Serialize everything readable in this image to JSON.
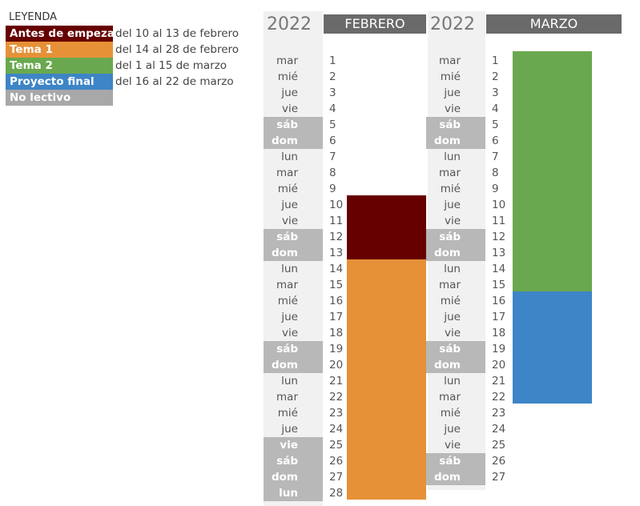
{
  "legend": {
    "title": "LEYENDA",
    "items": [
      {
        "label": "Antes de empezar",
        "range": "del 10 al 13 de febrero",
        "color": "#660000"
      },
      {
        "label": "Tema 1",
        "range": "del 14 al 28 de febrero",
        "color": "#e69138"
      },
      {
        "label": "Tema 2",
        "range": "del 1 al 15 de marzo",
        "color": "#6aa84f"
      },
      {
        "label": "Proyecto final",
        "range": "del 16 al 22 de marzo",
        "color": "#3d85c6"
      },
      {
        "label": "No lectivo",
        "range": "",
        "color": "#a8a8a8"
      }
    ]
  },
  "february": {
    "year": "2022",
    "month": "FEBRERO",
    "days": [
      {
        "name": "mar",
        "num": "1",
        "weekend": false
      },
      {
        "name": "mié",
        "num": "2",
        "weekend": false
      },
      {
        "name": "jue",
        "num": "3",
        "weekend": false
      },
      {
        "name": "vie",
        "num": "4",
        "weekend": false
      },
      {
        "name": "sáb",
        "num": "5",
        "weekend": true
      },
      {
        "name": "dom",
        "num": "6",
        "weekend": true
      },
      {
        "name": "lun",
        "num": "7",
        "weekend": false
      },
      {
        "name": "mar",
        "num": "8",
        "weekend": false
      },
      {
        "name": "mié",
        "num": "9",
        "weekend": false
      },
      {
        "name": "jue",
        "num": "10",
        "weekend": false
      },
      {
        "name": "vie",
        "num": "11",
        "weekend": false
      },
      {
        "name": "sáb",
        "num": "12",
        "weekend": true
      },
      {
        "name": "dom",
        "num": "13",
        "weekend": true
      },
      {
        "name": "lun",
        "num": "14",
        "weekend": false
      },
      {
        "name": "mar",
        "num": "15",
        "weekend": false
      },
      {
        "name": "mié",
        "num": "16",
        "weekend": false
      },
      {
        "name": "jue",
        "num": "17",
        "weekend": false
      },
      {
        "name": "vie",
        "num": "18",
        "weekend": false
      },
      {
        "name": "sáb",
        "num": "19",
        "weekend": true
      },
      {
        "name": "dom",
        "num": "20",
        "weekend": true
      },
      {
        "name": "lun",
        "num": "21",
        "weekend": false
      },
      {
        "name": "mar",
        "num": "22",
        "weekend": false
      },
      {
        "name": "mié",
        "num": "23",
        "weekend": false
      },
      {
        "name": "jue",
        "num": "24",
        "weekend": false
      },
      {
        "name": "vie",
        "num": "25",
        "weekend": true
      },
      {
        "name": "sáb",
        "num": "26",
        "weekend": true
      },
      {
        "name": "dom",
        "num": "27",
        "weekend": true
      },
      {
        "name": "lun",
        "num": "28",
        "weekend": true
      }
    ],
    "blocks": [
      {
        "from": 10,
        "to": 13,
        "color": "#660000"
      },
      {
        "from": 14,
        "to": 28,
        "color": "#e69138"
      }
    ]
  },
  "march": {
    "year": "2022",
    "month": "MARZO",
    "days": [
      {
        "name": "mar",
        "num": "1",
        "weekend": false
      },
      {
        "name": "mié",
        "num": "2",
        "weekend": false
      },
      {
        "name": "jue",
        "num": "3",
        "weekend": false
      },
      {
        "name": "vie",
        "num": "4",
        "weekend": false
      },
      {
        "name": "sáb",
        "num": "5",
        "weekend": true
      },
      {
        "name": "dom",
        "num": "6",
        "weekend": true
      },
      {
        "name": "lun",
        "num": "7",
        "weekend": false
      },
      {
        "name": "mar",
        "num": "8",
        "weekend": false
      },
      {
        "name": "mié",
        "num": "9",
        "weekend": false
      },
      {
        "name": "jue",
        "num": "10",
        "weekend": false
      },
      {
        "name": "vie",
        "num": "11",
        "weekend": false
      },
      {
        "name": "sáb",
        "num": "12",
        "weekend": true
      },
      {
        "name": "dom",
        "num": "13",
        "weekend": true
      },
      {
        "name": "lun",
        "num": "14",
        "weekend": false
      },
      {
        "name": "mar",
        "num": "15",
        "weekend": false
      },
      {
        "name": "mié",
        "num": "16",
        "weekend": false
      },
      {
        "name": "jue",
        "num": "17",
        "weekend": false
      },
      {
        "name": "vie",
        "num": "18",
        "weekend": false
      },
      {
        "name": "sáb",
        "num": "19",
        "weekend": true
      },
      {
        "name": "dom",
        "num": "20",
        "weekend": true
      },
      {
        "name": "lun",
        "num": "21",
        "weekend": false
      },
      {
        "name": "mar",
        "num": "22",
        "weekend": false
      },
      {
        "name": "mié",
        "num": "23",
        "weekend": false
      },
      {
        "name": "jue",
        "num": "24",
        "weekend": false
      },
      {
        "name": "vie",
        "num": "25",
        "weekend": false
      },
      {
        "name": "sáb",
        "num": "26",
        "weekend": true
      },
      {
        "name": "dom",
        "num": "27",
        "weekend": true
      }
    ],
    "blocks": [
      {
        "from": 1,
        "to": 15,
        "color": "#6aa84f"
      },
      {
        "from": 16,
        "to": 22,
        "color": "#3d85c6"
      }
    ]
  }
}
